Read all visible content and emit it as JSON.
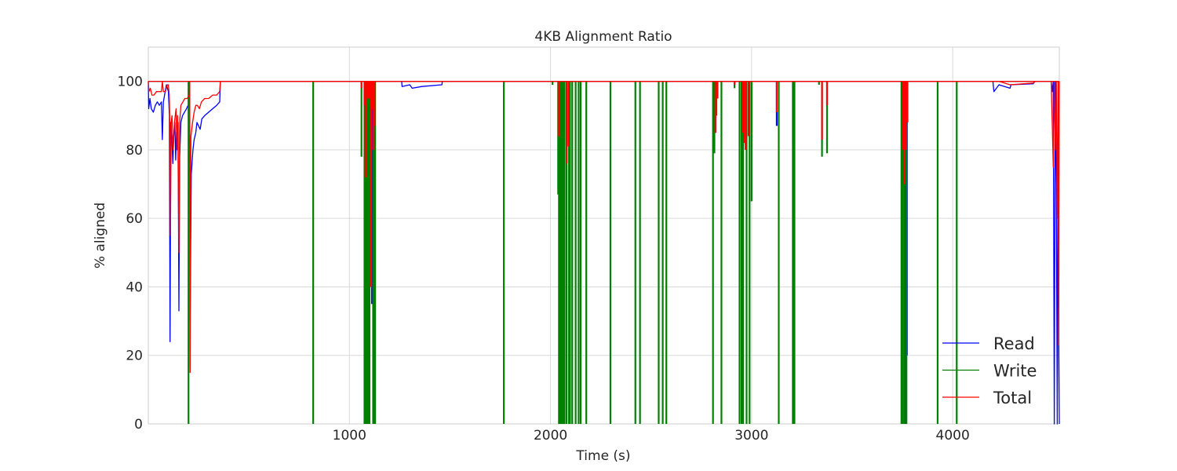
{
  "chart_data": {
    "type": "line",
    "title": "4KB Alignment Ratio",
    "xlabel": "Time (s)",
    "ylabel": "% aligned",
    "xlim": [
      0,
      4530
    ],
    "ylim": [
      0,
      110
    ],
    "xticks": [
      1000,
      2000,
      3000,
      4000
    ],
    "yticks": [
      0,
      20,
      40,
      60,
      80,
      100
    ],
    "grid": true,
    "legend_position": "lower right",
    "legend": [
      "Read",
      "Write",
      "Total"
    ],
    "series": [
      {
        "name": "Read",
        "color": "#0000ff",
        "baseline": 100,
        "curve_points": [
          [
            0,
            100
          ],
          [
            2,
            92
          ],
          [
            8,
            95
          ],
          [
            15,
            92
          ],
          [
            25,
            91
          ],
          [
            35,
            93
          ],
          [
            45,
            94
          ],
          [
            55,
            93
          ],
          [
            65,
            94
          ],
          [
            70,
            83
          ],
          [
            75,
            94
          ],
          [
            90,
            99
          ],
          [
            100,
            97
          ],
          [
            105,
            90
          ],
          [
            108,
            24
          ],
          [
            112,
            88
          ],
          [
            118,
            82
          ],
          [
            122,
            76
          ],
          [
            126,
            84
          ],
          [
            132,
            88
          ],
          [
            136,
            77
          ],
          [
            140,
            85
          ],
          [
            148,
            88
          ],
          [
            152,
            33
          ],
          [
            156,
            78
          ],
          [
            162,
            88
          ],
          [
            170,
            90
          ],
          [
            180,
            91
          ],
          [
            190,
            92
          ],
          [
            198,
            93
          ],
          [
            204,
            93
          ],
          [
            206,
            100
          ],
          [
            208,
            30
          ],
          [
            214,
            73
          ],
          [
            222,
            80
          ],
          [
            228,
            83
          ],
          [
            236,
            85
          ],
          [
            242,
            88
          ],
          [
            250,
            87
          ],
          [
            258,
            86
          ],
          [
            266,
            89
          ],
          [
            280,
            90
          ],
          [
            300,
            91
          ],
          [
            320,
            92
          ],
          [
            340,
            93
          ],
          [
            355,
            94
          ],
          [
            358,
            100
          ],
          [
            1260,
            100
          ],
          [
            1262,
            98.5
          ],
          [
            1300,
            99
          ],
          [
            1312,
            98
          ],
          [
            1360,
            98.5
          ],
          [
            1460,
            99
          ],
          [
            1462,
            100
          ],
          [
            4200,
            100
          ],
          [
            4205,
            97
          ],
          [
            4230,
            99
          ],
          [
            4285,
            98
          ],
          [
            4290,
            99
          ],
          [
            4400,
            99.3
          ],
          [
            4410,
            100
          ],
          [
            4490,
            100
          ],
          [
            4495,
            97
          ],
          [
            4500,
            100
          ],
          [
            4505,
            0
          ],
          [
            4510,
            100
          ],
          [
            4515,
            70
          ],
          [
            4520,
            0
          ],
          [
            4524,
            100
          ],
          [
            4527,
            25
          ],
          [
            4530,
            0
          ]
        ],
        "spikes": [
          [
            1095,
            2
          ],
          [
            1108,
            40
          ],
          [
            1112,
            35
          ],
          [
            2047,
            90
          ],
          [
            2090,
            82
          ],
          [
            2820,
            85
          ],
          [
            2830,
            95
          ],
          [
            3125,
            87
          ],
          [
            3765,
            0
          ],
          [
            3772,
            20
          ]
        ]
      },
      {
        "name": "Write",
        "color": "#008000",
        "baseline": 100,
        "curve_points": [],
        "spikes": [
          [
            200,
            0
          ],
          [
            820,
            0
          ],
          [
            1060,
            78
          ],
          [
            1075,
            0
          ],
          [
            1080,
            0
          ],
          [
            1085,
            0
          ],
          [
            1090,
            0
          ],
          [
            1095,
            0
          ],
          [
            1100,
            0
          ],
          [
            1118,
            0
          ],
          [
            1125,
            0
          ],
          [
            1128,
            0
          ],
          [
            1768,
            0
          ],
          [
            2010,
            99
          ],
          [
            2038,
            67
          ],
          [
            2042,
            0
          ],
          [
            2047,
            0
          ],
          [
            2052,
            0
          ],
          [
            2060,
            0
          ],
          [
            2065,
            0
          ],
          [
            2070,
            0
          ],
          [
            2080,
            0
          ],
          [
            2092,
            0
          ],
          [
            2097,
            0
          ],
          [
            2108,
            0
          ],
          [
            2125,
            0
          ],
          [
            2140,
            0
          ],
          [
            2150,
            0
          ],
          [
            2178,
            0
          ],
          [
            2298,
            0
          ],
          [
            2422,
            0
          ],
          [
            2445,
            0
          ],
          [
            2538,
            0
          ],
          [
            2558,
            0
          ],
          [
            2576,
            0
          ],
          [
            2808,
            0
          ],
          [
            2815,
            79
          ],
          [
            2825,
            90
          ],
          [
            2850,
            0
          ],
          [
            2915,
            98
          ],
          [
            2940,
            0
          ],
          [
            2950,
            0
          ],
          [
            2958,
            0
          ],
          [
            2975,
            0
          ],
          [
            2990,
            0
          ],
          [
            3000,
            65
          ],
          [
            3135,
            0
          ],
          [
            3205,
            0
          ],
          [
            3213,
            0
          ],
          [
            3335,
            99
          ],
          [
            3350,
            78
          ],
          [
            3375,
            79
          ],
          [
            3745,
            0
          ],
          [
            3752,
            0
          ],
          [
            3760,
            0
          ],
          [
            3768,
            70
          ],
          [
            3770,
            0
          ],
          [
            3925,
            0
          ],
          [
            4020,
            0
          ]
        ]
      },
      {
        "name": "Total",
        "color": "#ff0000",
        "baseline": 100,
        "curve_points": [
          [
            0,
            100
          ],
          [
            3,
            97
          ],
          [
            10,
            98
          ],
          [
            18,
            96
          ],
          [
            28,
            96
          ],
          [
            40,
            97
          ],
          [
            55,
            97
          ],
          [
            65,
            97
          ],
          [
            70,
            100
          ],
          [
            75,
            97
          ],
          [
            85,
            97
          ],
          [
            95,
            99
          ],
          [
            100,
            99
          ],
          [
            104,
            96
          ],
          [
            108,
            85
          ],
          [
            110,
            55
          ],
          [
            114,
            88
          ],
          [
            118,
            90
          ],
          [
            124,
            80
          ],
          [
            130,
            88
          ],
          [
            138,
            92
          ],
          [
            142,
            80
          ],
          [
            146,
            90
          ],
          [
            152,
            50
          ],
          [
            156,
            88
          ],
          [
            162,
            93
          ],
          [
            172,
            94
          ],
          [
            182,
            95
          ],
          [
            194,
            95
          ],
          [
            204,
            96
          ],
          [
            206,
            100
          ],
          [
            208,
            15
          ],
          [
            212,
            84
          ],
          [
            220,
            88
          ],
          [
            228,
            91
          ],
          [
            236,
            93
          ],
          [
            244,
            93
          ],
          [
            254,
            92
          ],
          [
            264,
            94
          ],
          [
            280,
            95
          ],
          [
            300,
            95
          ],
          [
            320,
            96
          ],
          [
            340,
            96
          ],
          [
            355,
            97
          ],
          [
            358,
            100
          ],
          [
            4230,
            100
          ],
          [
            4285,
            99
          ],
          [
            4400,
            99.5
          ],
          [
            4410,
            100
          ],
          [
            4490,
            100
          ],
          [
            4500,
            75
          ],
          [
            4505,
            100
          ],
          [
            4510,
            80
          ],
          [
            4515,
            100
          ],
          [
            4520,
            60
          ],
          [
            4524,
            100
          ],
          [
            4527,
            23
          ],
          [
            4530,
            100
          ]
        ],
        "spikes": [
          [
            1060,
            98
          ],
          [
            1075,
            93
          ],
          [
            1080,
            72
          ],
          [
            1090,
            95
          ],
          [
            1100,
            95
          ],
          [
            1108,
            40
          ],
          [
            1112,
            92
          ],
          [
            1118,
            80
          ],
          [
            1125,
            87
          ],
          [
            2040,
            84
          ],
          [
            2080,
            76
          ],
          [
            2090,
            81
          ],
          [
            2820,
            85
          ],
          [
            2830,
            95
          ],
          [
            2915,
            99
          ],
          [
            2955,
            85
          ],
          [
            2962,
            82
          ],
          [
            2970,
            80
          ],
          [
            2985,
            84
          ],
          [
            3125,
            91
          ],
          [
            3350,
            83
          ],
          [
            3375,
            93
          ],
          [
            3752,
            80
          ],
          [
            3760,
            70
          ],
          [
            3768,
            80
          ],
          [
            3775,
            88
          ]
        ]
      }
    ]
  }
}
